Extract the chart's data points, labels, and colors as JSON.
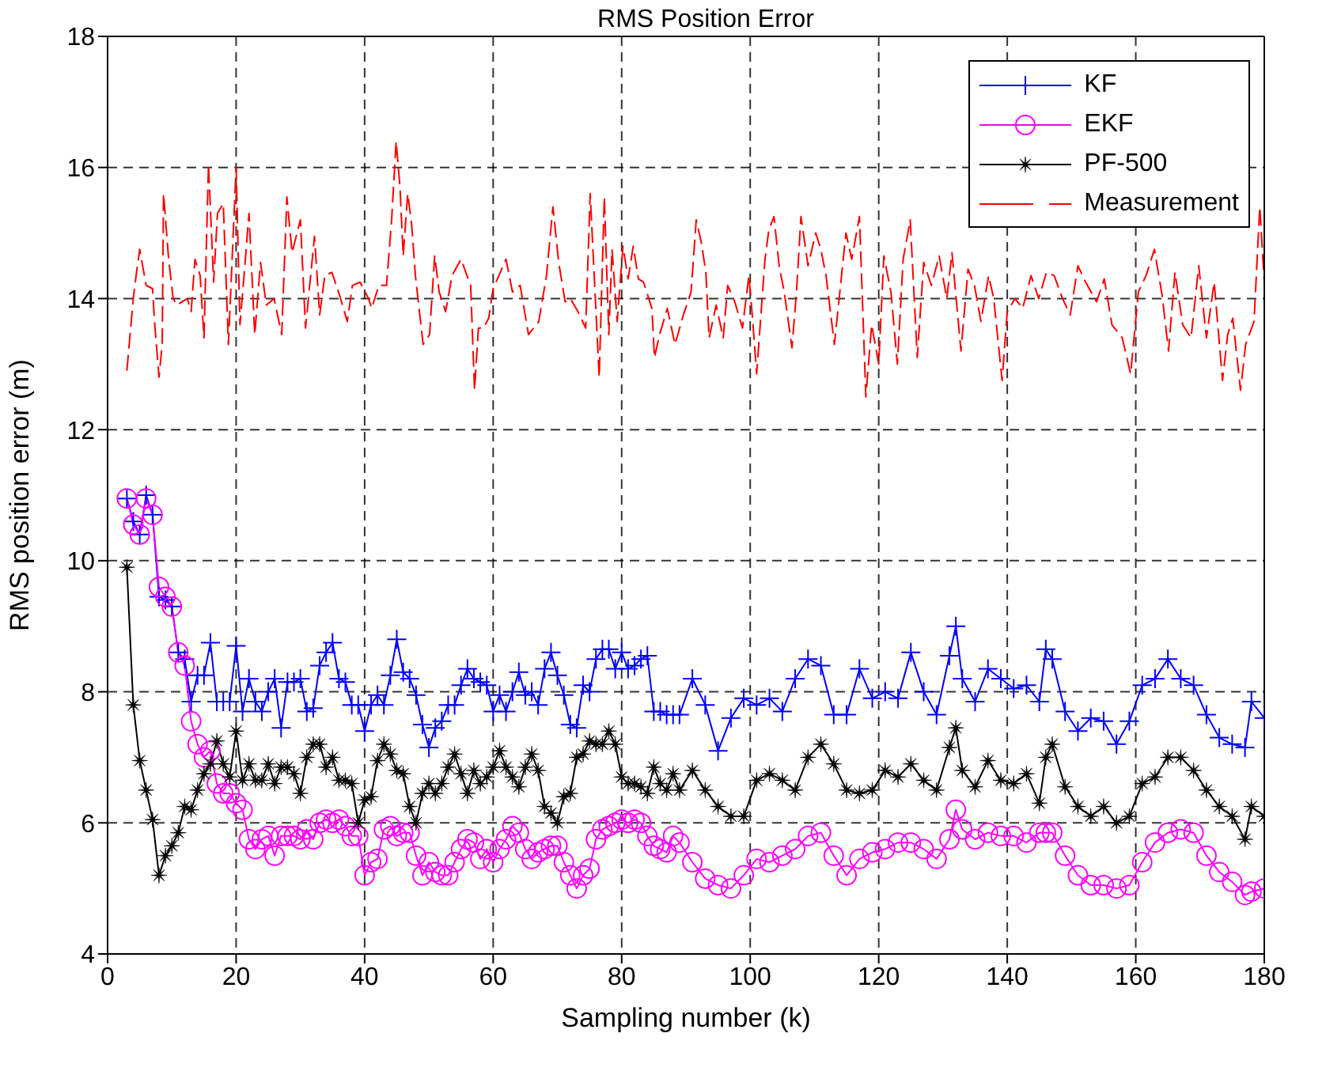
{
  "chart_data": {
    "type": "line",
    "title": "RMS Position Error",
    "xlabel": "Sampling number (k)",
    "ylabel": "RMS position error (m)",
    "xlim": [
      0,
      180
    ],
    "xticks": [
      0,
      20,
      40,
      60,
      80,
      100,
      120,
      140,
      160,
      180
    ],
    "ylim": [
      4,
      18
    ],
    "yticks": [
      4,
      6,
      8,
      10,
      12,
      14,
      16,
      18
    ],
    "grid": true,
    "legend": "top right",
    "x": [
      3,
      4,
      5,
      6,
      7,
      8,
      9,
      10,
      11,
      12,
      13,
      14,
      15,
      16,
      17,
      18,
      19,
      20,
      21,
      22,
      23,
      24,
      25,
      26,
      27,
      28,
      29,
      30,
      31,
      32,
      33,
      34,
      35,
      36,
      37,
      38,
      39,
      40,
      41,
      42,
      43,
      44,
      45,
      46,
      47,
      48,
      49,
      50,
      51,
      52,
      53,
      54,
      55,
      56,
      57,
      58,
      59,
      60,
      61,
      62,
      63,
      64,
      65,
      66,
      67,
      68,
      69,
      70,
      71,
      72,
      73,
      74,
      75,
      76,
      77,
      78,
      79,
      80,
      81,
      82,
      83,
      84,
      85,
      86,
      87,
      88,
      89,
      91,
      93,
      95,
      97,
      99,
      101,
      103,
      105,
      107,
      109,
      111,
      113,
      115,
      117,
      119,
      121,
      123,
      125,
      127,
      129,
      131,
      132,
      133,
      135,
      137,
      139,
      141,
      143,
      145,
      146,
      147,
      149,
      151,
      153,
      155,
      157,
      159,
      161,
      163,
      165,
      167,
      169,
      171,
      173,
      175,
      177,
      178,
      180
    ],
    "series": [
      {
        "name": "KF",
        "color": "#0000ff",
        "marker": "cross",
        "line_style": "solid",
        "values": [
          10.95,
          10.6,
          10.4,
          11.0,
          10.7,
          9.45,
          9.4,
          9.3,
          8.6,
          8.5,
          7.85,
          8.25,
          8.25,
          8.75,
          7.85,
          7.85,
          7.85,
          8.7,
          7.7,
          8.2,
          7.85,
          7.7,
          8.0,
          8.2,
          7.45,
          8.15,
          8.15,
          8.2,
          7.7,
          7.75,
          8.4,
          8.6,
          8.75,
          8.2,
          8.15,
          7.8,
          7.8,
          7.4,
          7.8,
          7.95,
          7.8,
          8.25,
          8.8,
          8.3,
          8.2,
          7.95,
          7.5,
          7.15,
          7.45,
          7.55,
          7.8,
          7.8,
          8.1,
          8.35,
          8.2,
          8.15,
          8.1,
          7.7,
          7.95,
          7.7,
          8.0,
          8.3,
          7.95,
          8.0,
          7.8,
          8.35,
          8.6,
          8.25,
          7.95,
          7.5,
          7.45,
          8.1,
          8.0,
          8.5,
          8.65,
          8.65,
          8.35,
          8.6,
          8.35,
          8.4,
          8.5,
          8.55,
          7.7,
          7.7,
          7.65,
          7.65,
          7.65,
          8.2,
          7.8,
          7.1,
          7.6,
          7.9,
          7.8,
          7.9,
          7.7,
          8.2,
          8.5,
          8.4,
          7.65,
          7.65,
          8.35,
          7.9,
          8.0,
          7.9,
          8.6,
          8.0,
          7.65,
          8.55,
          9.0,
          8.2,
          7.85,
          8.35,
          8.2,
          8.05,
          8.1,
          7.85,
          8.65,
          8.5,
          7.7,
          7.4,
          7.6,
          7.55,
          7.2,
          7.55,
          8.1,
          8.2,
          8.5,
          8.2,
          8.1,
          7.65,
          7.3,
          7.2,
          7.15,
          7.85,
          7.6
        ]
      },
      {
        "name": "EKF",
        "color": "#ff00ff",
        "marker": "circle",
        "line_style": "solid",
        "values": [
          10.95,
          10.55,
          10.4,
          10.95,
          10.7,
          9.6,
          9.45,
          9.3,
          8.6,
          8.4,
          7.55,
          7.2,
          7.0,
          7.1,
          6.6,
          6.45,
          6.45,
          6.3,
          6.2,
          5.75,
          5.6,
          5.75,
          5.8,
          5.5,
          5.8,
          5.8,
          5.8,
          5.75,
          5.9,
          5.75,
          6.0,
          6.05,
          6.0,
          6.05,
          5.95,
          5.8,
          5.8,
          5.2,
          5.4,
          5.45,
          5.9,
          5.95,
          5.8,
          5.85,
          5.85,
          5.5,
          5.2,
          5.4,
          5.25,
          5.2,
          5.2,
          5.4,
          5.6,
          5.75,
          5.7,
          5.45,
          5.6,
          5.4,
          5.6,
          5.75,
          5.95,
          5.85,
          5.6,
          5.45,
          5.55,
          5.6,
          5.65,
          5.65,
          5.4,
          5.2,
          5.0,
          5.2,
          5.3,
          5.75,
          5.9,
          5.95,
          6.0,
          6.05,
          6.0,
          6.05,
          6.0,
          5.8,
          5.65,
          5.6,
          5.55,
          5.8,
          5.7,
          5.4,
          5.15,
          5.05,
          5.0,
          5.2,
          5.45,
          5.4,
          5.5,
          5.6,
          5.8,
          5.85,
          5.5,
          5.2,
          5.45,
          5.55,
          5.6,
          5.7,
          5.7,
          5.6,
          5.45,
          5.75,
          6.2,
          5.9,
          5.75,
          5.85,
          5.8,
          5.8,
          5.7,
          5.85,
          5.85,
          5.85,
          5.5,
          5.2,
          5.05,
          5.05,
          5.0,
          5.05,
          5.4,
          5.7,
          5.85,
          5.9,
          5.85,
          5.5,
          5.25,
          5.1,
          4.9,
          4.95,
          5.0
        ]
      },
      {
        "name": "PF-500",
        "color": "#000000",
        "marker": "star",
        "line_style": "solid",
        "values": [
          9.9,
          7.8,
          6.95,
          6.5,
          6.05,
          5.2,
          5.5,
          5.65,
          5.85,
          6.25,
          6.2,
          6.5,
          6.75,
          6.9,
          7.25,
          6.9,
          6.7,
          7.4,
          6.65,
          6.9,
          6.65,
          6.65,
          6.9,
          6.6,
          6.85,
          6.85,
          6.75,
          6.45,
          7.0,
          7.2,
          7.2,
          6.85,
          7.0,
          6.65,
          6.65,
          6.6,
          6.0,
          6.35,
          6.4,
          6.95,
          7.2,
          7.05,
          6.8,
          6.75,
          6.25,
          6.0,
          6.45,
          6.6,
          6.45,
          6.6,
          6.85,
          7.05,
          6.75,
          6.45,
          6.8,
          6.6,
          6.7,
          6.85,
          7.1,
          6.85,
          6.7,
          6.55,
          6.85,
          7.05,
          6.8,
          6.25,
          6.15,
          6.0,
          6.4,
          6.45,
          7.0,
          7.05,
          7.25,
          7.2,
          7.2,
          7.4,
          7.2,
          6.7,
          6.6,
          6.6,
          6.55,
          6.45,
          6.85,
          6.6,
          6.5,
          6.75,
          6.5,
          6.8,
          6.5,
          6.25,
          6.1,
          6.1,
          6.65,
          6.75,
          6.65,
          6.5,
          7.0,
          7.2,
          6.9,
          6.5,
          6.45,
          6.5,
          6.8,
          6.7,
          6.9,
          6.65,
          6.5,
          7.15,
          7.45,
          6.8,
          6.55,
          6.95,
          6.65,
          6.6,
          6.75,
          6.3,
          7.0,
          7.2,
          6.55,
          6.25,
          6.1,
          6.25,
          6.0,
          6.1,
          6.6,
          6.7,
          7.0,
          7.0,
          6.8,
          6.5,
          6.25,
          6.1,
          5.75,
          6.25,
          6.1
        ]
      },
      {
        "name": "Measurement",
        "color": "#ff0000",
        "marker": "none",
        "line_style": "dashed",
        "x": [
          3,
          4,
          4.5,
          5,
          6,
          7,
          7.3,
          8,
          8.5,
          8.7,
          9.5,
          10.2,
          10.8,
          12.4,
          13,
          13.6,
          14.4,
          15,
          15.7,
          16.5,
          17.1,
          18,
          18.8,
          20,
          20.6,
          21.4,
          22,
          22.9,
          23.8,
          24.7,
          25.9,
          27.1,
          27.9,
          28.7,
          30,
          30.8,
          31.6,
          32.2,
          33,
          33.8,
          34.9,
          36.1,
          37.3,
          38.1,
          39.3,
          40.6,
          41.1,
          42.2,
          43.4,
          44.2,
          44.9,
          45.5,
          46,
          46.7,
          47.3,
          47.9,
          49.1,
          50.1,
          50.9,
          51.6,
          52.6,
          53.6,
          55,
          56.5,
          57.1,
          57.7,
          58.5,
          59.3,
          60,
          62,
          63,
          64.2,
          65.5,
          67.1,
          68.3,
          69.3,
          70.2,
          71.2,
          72,
          73.2,
          74.4,
          75.1,
          76.5,
          77.3,
          78,
          78.5,
          79.3,
          80.2,
          81,
          81.8,
          82.6,
          83.4,
          84.7,
          85.1,
          85.9,
          87.1,
          88.3,
          89.6,
          90.8,
          91.6,
          92.4,
          93.1,
          93.6,
          94.7,
          95.8,
          96.5,
          97.6,
          98.8,
          99.8,
          100.4,
          101,
          102.3,
          102.9,
          103.7,
          104.5,
          105.3,
          106.5,
          107.2,
          107.9,
          109,
          110.2,
          111,
          111.8,
          113.1,
          114.9,
          115.8,
          117,
          118,
          118.9,
          120,
          120.8,
          121.9,
          122.9,
          123.8,
          124.9,
          126,
          127,
          128.2,
          129.4,
          130.6,
          131.4,
          132.8,
          133.9,
          134.9,
          135.9,
          137.1,
          137.9,
          139.2,
          140,
          141.2,
          142.4,
          143.7,
          144.9,
          146.1,
          147.3,
          148.6,
          149.8,
          151,
          152.2,
          153.9,
          155.1,
          156.3,
          157.9,
          159.2,
          160.4,
          161.6,
          162.9,
          164.1,
          165.1,
          166.1,
          167.3,
          168.6,
          169.8,
          171,
          172.2,
          173.5,
          174.3,
          175.1,
          176.3,
          177.1,
          178.4,
          179.3,
          180
        ],
        "values": [
          12.9,
          14.0,
          14.4,
          14.75,
          14.2,
          14.15,
          13.65,
          12.8,
          13.3,
          15.6,
          14.6,
          14.0,
          13.9,
          14.0,
          13.8,
          14.6,
          14.35,
          13.4,
          16.05,
          14.25,
          15.3,
          15.45,
          13.3,
          16.0,
          13.6,
          14.55,
          15.3,
          13.45,
          14.55,
          13.9,
          14.0,
          13.45,
          15.55,
          14.7,
          15.2,
          13.55,
          14.35,
          14.95,
          13.75,
          14.35,
          14.4,
          14.05,
          13.65,
          14.2,
          14.25,
          14.0,
          13.85,
          14.2,
          14.2,
          15.2,
          16.4,
          15.7,
          14.65,
          15.6,
          15.15,
          14.35,
          13.3,
          13.45,
          14.65,
          14.1,
          13.8,
          14.35,
          14.6,
          14.2,
          12.6,
          13.55,
          13.55,
          13.7,
          14.15,
          14.6,
          14.1,
          14.2,
          13.45,
          13.65,
          14.35,
          15.4,
          14.55,
          13.95,
          14.0,
          13.8,
          13.55,
          15.6,
          12.8,
          15.55,
          13.45,
          14.75,
          13.65,
          14.8,
          14.3,
          14.8,
          14.3,
          14.25,
          13.85,
          13.1,
          13.45,
          13.85,
          13.3,
          13.75,
          14.1,
          15.2,
          14.85,
          14.4,
          13.4,
          13.9,
          13.4,
          14.2,
          13.95,
          13.55,
          14.35,
          13.65,
          12.85,
          14.6,
          15.05,
          15.25,
          14.5,
          14.1,
          13.25,
          14.1,
          15.25,
          14.5,
          15.0,
          14.75,
          14.35,
          13.3,
          15.0,
          14.6,
          15.25,
          12.5,
          13.6,
          13.0,
          14.65,
          14.1,
          13.0,
          14.6,
          15.2,
          13.1,
          14.55,
          14.2,
          14.65,
          14.0,
          14.7,
          13.2,
          14.45,
          14.2,
          13.65,
          14.35,
          14.0,
          12.75,
          13.8,
          14.0,
          13.85,
          14.35,
          14.0,
          14.4,
          14.35,
          14.0,
          13.75,
          14.5,
          14.25,
          13.95,
          14.3,
          13.6,
          13.4,
          12.85,
          14.1,
          14.35,
          14.75,
          14.05,
          13.2,
          14.4,
          13.6,
          13.4,
          14.5,
          13.4,
          14.25,
          12.75,
          13.45,
          13.7,
          12.6,
          13.3,
          13.65,
          15.4,
          14.25
        ]
      }
    ]
  }
}
